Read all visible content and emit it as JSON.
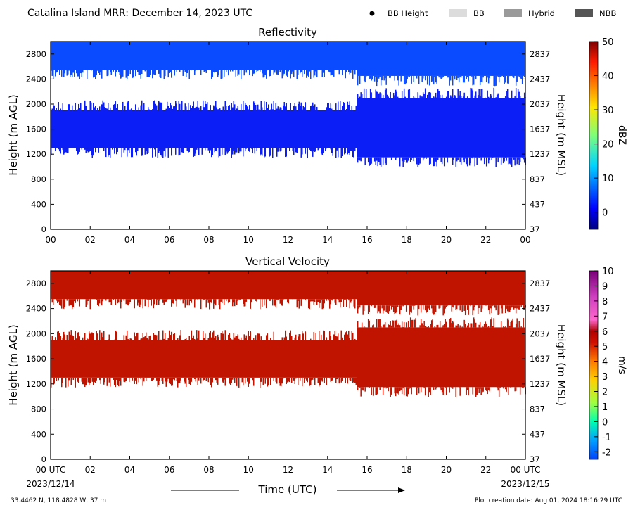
{
  "header": {
    "title": "Catalina Island MRR:  December 14, 2023 UTC",
    "legend": [
      {
        "label": "BB Height",
        "marker": "dot",
        "color": "#000000"
      },
      {
        "label": "BB",
        "marker": "swatch",
        "color": "#dcdcdc"
      },
      {
        "label": "Hybrid",
        "marker": "swatch",
        "color": "#9a9a9a"
      },
      {
        "label": "NBB",
        "marker": "swatch",
        "color": "#555555"
      }
    ]
  },
  "footer": {
    "location": "33.4462 N, 118.4828 W, 37 m",
    "creation": "Plot creation date: Aug 01, 2024 18:16:29 UTC",
    "start_date": "2023/12/14",
    "end_date": "2023/12/15",
    "time_axis_label": "Time (UTC)"
  },
  "chart_data": [
    {
      "type": "heatmap",
      "title": "Reflectivity",
      "xlabel": "",
      "ylabel": "Height (m AGL)",
      "ylabel_right": "Height (m MSL)",
      "xlim": [
        0,
        24
      ],
      "ylim": [
        0,
        3000
      ],
      "x_ticks": [
        "00",
        "02",
        "04",
        "06",
        "08",
        "10",
        "12",
        "14",
        "16",
        "18",
        "20",
        "22",
        "00"
      ],
      "y_ticks": [
        0,
        400,
        800,
        1200,
        1600,
        2000,
        2400,
        2800
      ],
      "y_ticks_right": [
        37,
        437,
        837,
        1237,
        1637,
        2037,
        2437,
        2837
      ],
      "colorbar": {
        "label": "dBZ",
        "min": -5,
        "max": 50,
        "ticks": [
          0,
          10,
          20,
          30,
          40,
          50
        ]
      },
      "echo_layers": [
        {
          "name": "",
          "t_start": 0,
          "t_end": 15.5,
          "base_m": 1300,
          "top_m": 1900,
          "dbz": 2
        },
        {
          "name": "",
          "t_start": 15.5,
          "t_end": 24,
          "base_m": 1150,
          "top_m": 2100,
          "dbz": 3
        },
        {
          "name": "",
          "t_start": 0,
          "t_end": 15.5,
          "base_m": 2550,
          "top_m": 3000,
          "dbz": 6
        },
        {
          "name": "",
          "t_start": 15.5,
          "t_end": 24,
          "base_m": 2450,
          "top_m": 3000,
          "dbz": 7
        }
      ]
    },
    {
      "type": "heatmap",
      "title": "Vertical Velocity",
      "xlabel": "",
      "ylabel": "Height (m AGL)",
      "ylabel_right": "Height (m MSL)",
      "xlim": [
        0,
        24
      ],
      "ylim": [
        0,
        3000
      ],
      "x_ticks": [
        "00 UTC",
        "02",
        "04",
        "06",
        "08",
        "10",
        "12",
        "14",
        "16",
        "18",
        "20",
        "22",
        "00 UTC"
      ],
      "y_ticks": [
        0,
        400,
        800,
        1200,
        1600,
        2000,
        2400,
        2800
      ],
      "y_ticks_right": [
        37,
        437,
        837,
        1237,
        1637,
        2037,
        2437,
        2837
      ],
      "colorbar": {
        "label": "m/s",
        "min": -2.5,
        "max": 10,
        "ticks": [
          -2,
          -1,
          0,
          1,
          2,
          3,
          4,
          5,
          6,
          7,
          8,
          9,
          10
        ]
      },
      "echo_layers": [
        {
          "name": "",
          "t_start": 0,
          "t_end": 15.5,
          "base_m": 1300,
          "top_m": 1900,
          "velocity_ms": 6
        },
        {
          "name": "",
          "t_start": 15.5,
          "t_end": 24,
          "base_m": 1150,
          "top_m": 2100,
          "velocity_ms": 6
        },
        {
          "name": "",
          "t_start": 0,
          "t_end": 15.5,
          "base_m": 2550,
          "top_m": 3000,
          "velocity_ms": 6
        },
        {
          "name": "",
          "t_start": 15.5,
          "t_end": 24,
          "base_m": 2450,
          "top_m": 3000,
          "velocity_ms": 6
        }
      ]
    }
  ]
}
